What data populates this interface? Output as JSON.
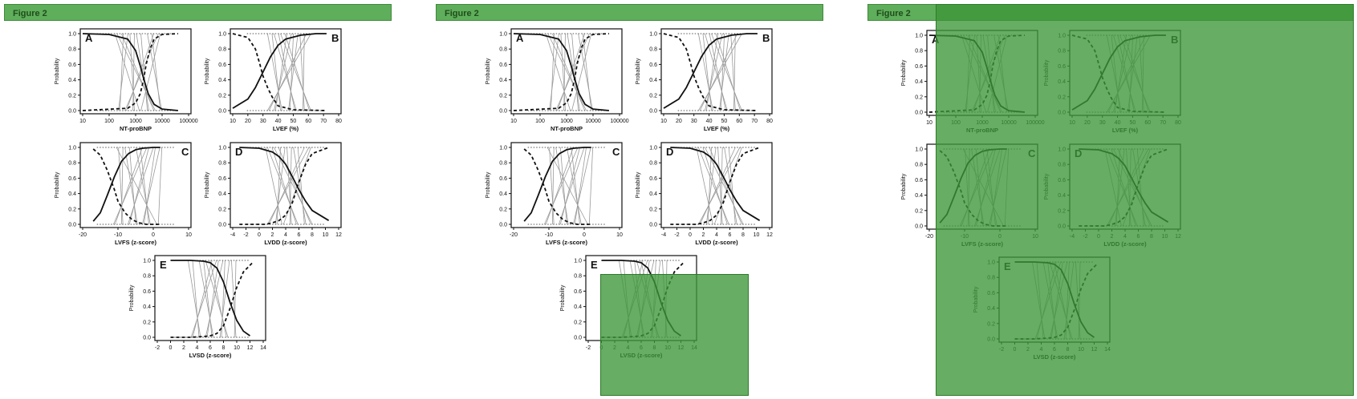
{
  "figure_label": "Figure 2",
  "y_axis_label": "Probability",
  "y_ticks": [
    "0.0",
    "0.2",
    "0.4",
    "0.6",
    "0.8",
    "1.0"
  ],
  "colors": {
    "figure_bar": "#5fae5b",
    "highlight": "#3c9637",
    "curve": "#1a1a1a",
    "line": "#9a9a9a"
  },
  "chart_data": [
    {
      "type": "line",
      "panel": "A",
      "xlabel": "NT-proBNP",
      "x_scale": "log",
      "xlim": [
        10,
        100000
      ],
      "ylim": [
        0,
        1
      ],
      "x_ticks": [
        "10",
        "100",
        "1000",
        "10000",
        "100000"
      ],
      "series": [
        {
          "style": "solid",
          "x": [
            10,
            100,
            500,
            1000,
            1500,
            2000,
            3000,
            5000,
            10000,
            40000
          ],
          "y": [
            1.0,
            0.99,
            0.93,
            0.78,
            0.58,
            0.42,
            0.22,
            0.08,
            0.02,
            0.0
          ]
        },
        {
          "style": "dashed",
          "x": [
            10,
            500,
            1000,
            1500,
            2000,
            2500,
            3500,
            5000,
            10000,
            40000
          ],
          "y": [
            0.0,
            0.03,
            0.1,
            0.22,
            0.4,
            0.6,
            0.8,
            0.93,
            0.99,
            1.0
          ]
        }
      ]
    },
    {
      "type": "line",
      "panel": "B",
      "xlabel": "LVEF (%)",
      "x_scale": "linear",
      "xlim": [
        10,
        80
      ],
      "ylim": [
        0,
        1
      ],
      "x_ticks": [
        "10",
        "20",
        "30",
        "40",
        "50",
        "60",
        "70",
        "80"
      ],
      "series": [
        {
          "style": "solid",
          "x": [
            10,
            20,
            25,
            30,
            35,
            40,
            45,
            55,
            65,
            72
          ],
          "y": [
            0.03,
            0.15,
            0.3,
            0.5,
            0.7,
            0.85,
            0.93,
            0.98,
            1.0,
            1.0
          ]
        },
        {
          "style": "dashed",
          "x": [
            10,
            20,
            25,
            28,
            30,
            33,
            36,
            40,
            50,
            72
          ],
          "y": [
            1.0,
            0.95,
            0.8,
            0.6,
            0.45,
            0.3,
            0.18,
            0.06,
            0.01,
            0.0
          ]
        }
      ]
    },
    {
      "type": "line",
      "panel": "C",
      "xlabel": "LVFS (z-score)",
      "x_scale": "linear",
      "xlim": [
        -20,
        10
      ],
      "ylim": [
        0,
        1
      ],
      "x_ticks": [
        "-20",
        "-10",
        "0",
        "10"
      ],
      "series": [
        {
          "style": "solid",
          "x": [
            -17,
            -15,
            -13,
            -11,
            -9,
            -7,
            -5,
            -3,
            0,
            2
          ],
          "y": [
            0.04,
            0.15,
            0.38,
            0.62,
            0.82,
            0.92,
            0.97,
            0.99,
            1.0,
            1.0
          ]
        },
        {
          "style": "dashed",
          "x": [
            -17,
            -15,
            -13,
            -11,
            -10,
            -8,
            -6,
            -4,
            -2,
            2
          ],
          "y": [
            0.98,
            0.9,
            0.7,
            0.45,
            0.3,
            0.15,
            0.06,
            0.02,
            0.0,
            0.0
          ]
        }
      ]
    },
    {
      "type": "line",
      "panel": "D",
      "xlabel": "LVDD (z-score)",
      "x_scale": "linear",
      "xlim": [
        -4,
        12
      ],
      "ylim": [
        0,
        1
      ],
      "x_ticks": [
        "-4",
        "-2",
        "0",
        "2",
        "4",
        "6",
        "8",
        "10",
        "12"
      ],
      "series": [
        {
          "style": "solid",
          "x": [
            -3,
            0,
            2,
            3,
            4,
            5,
            6,
            7,
            8,
            10.5
          ],
          "y": [
            1.0,
            0.99,
            0.94,
            0.88,
            0.78,
            0.62,
            0.45,
            0.3,
            0.18,
            0.05
          ]
        },
        {
          "style": "dashed",
          "x": [
            -3,
            1,
            2,
            3,
            4,
            5,
            6,
            7,
            8,
            10.5
          ],
          "y": [
            0.0,
            0.0,
            0.02,
            0.05,
            0.12,
            0.28,
            0.55,
            0.78,
            0.92,
            1.0
          ]
        }
      ]
    },
    {
      "type": "line",
      "panel": "E",
      "xlabel": "LVSD (z-score)",
      "x_scale": "linear",
      "xlim": [
        -2,
        14
      ],
      "ylim": [
        0,
        1
      ],
      "x_ticks": [
        "-2",
        "0",
        "2",
        "4",
        "6",
        "8",
        "10",
        "12",
        "14"
      ],
      "series": [
        {
          "style": "solid",
          "x": [
            0,
            3,
            5,
            6,
            7,
            8,
            9,
            10,
            11,
            12
          ],
          "y": [
            1.0,
            1.0,
            0.99,
            0.97,
            0.9,
            0.72,
            0.45,
            0.22,
            0.08,
            0.02
          ]
        },
        {
          "style": "dashed",
          "x": [
            0,
            3,
            5,
            6,
            7,
            8,
            9,
            10,
            11,
            12.5
          ],
          "y": [
            0.0,
            0.0,
            0.01,
            0.02,
            0.05,
            0.15,
            0.38,
            0.65,
            0.85,
            0.98
          ]
        }
      ]
    }
  ]
}
